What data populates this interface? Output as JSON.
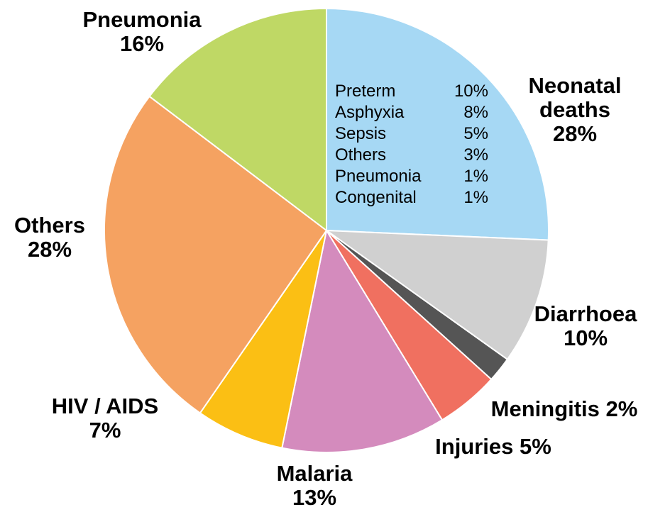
{
  "chart_data": {
    "type": "pie",
    "categories": [
      "Neonatal deaths",
      "Diarrhoea",
      "Meningitis",
      "Injuries",
      "Malaria",
      "HIV / AIDS",
      "Others",
      "Pneumonia"
    ],
    "values": [
      28,
      10,
      2,
      5,
      13,
      7,
      28,
      16
    ],
    "value_labels": [
      "28%",
      "10%",
      "2%",
      "5%",
      "13%",
      "7%",
      "28%",
      "16%"
    ],
    "colors": [
      "#a6d8f4",
      "#d0d0d0",
      "#555555",
      "#f07060",
      "#d48bbd",
      "#fbbf14",
      "#f5a261",
      "#bfd865"
    ],
    "breakdown": {
      "categories": [
        "Preterm",
        "Asphyxia",
        "Sepsis",
        "Others",
        "Pneumonia",
        "Congenital"
      ],
      "values": [
        10,
        8,
        5,
        3,
        1,
        1
      ],
      "value_labels": [
        "10%",
        "8%",
        "5%",
        "3%",
        "1%",
        "1%"
      ]
    }
  }
}
